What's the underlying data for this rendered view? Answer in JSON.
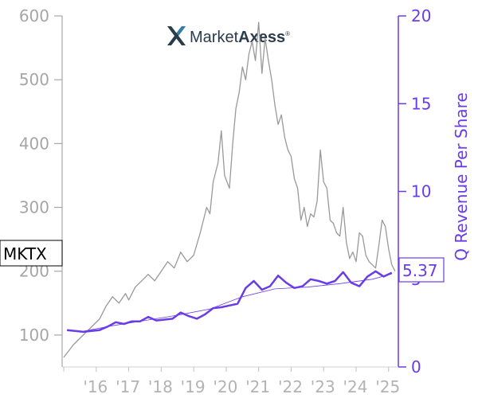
{
  "chart_data": {
    "type": "line",
    "ticker": "MKTX",
    "logo": {
      "text_regular": "Market",
      "text_bold": "Axess",
      "mark": "®"
    },
    "ylabel_right": "Q Revenue Per Share",
    "ylim_left": [
      50,
      600
    ],
    "ylim_right": [
      0,
      20
    ],
    "left_ticks": [
      100,
      200,
      300,
      400,
      500,
      600
    ],
    "right_ticks": [
      0,
      5,
      10,
      15,
      20
    ],
    "x_ticks": [
      "'16",
      "'17",
      "'18",
      "'19",
      "'20",
      "'21",
      "'22",
      "'23",
      "'24",
      "'25"
    ],
    "last_value_label": "5.37",
    "colors": {
      "price": "#999999",
      "revenue": "#6a3ce6",
      "axis_left": "#a6a6a6",
      "axis_right": "#6a3ce6",
      "trend": "#6a3ce6"
    },
    "series": [
      {
        "axis": "left",
        "x": [
          2015.0,
          2015.3,
          2015.6,
          2015.9,
          2016.1,
          2016.3,
          2016.5,
          2016.7,
          2016.9,
          2017.0,
          2017.2,
          2017.4,
          2017.6,
          2017.8,
          2018.0,
          2018.2,
          2018.4,
          2018.6,
          2018.8,
          2019.0,
          2019.2,
          2019.4,
          2019.5,
          2019.6,
          2019.75,
          2019.85,
          2019.95,
          2020.1,
          2020.2,
          2020.3,
          2020.4,
          2020.5,
          2020.6,
          2020.7,
          2020.8,
          2020.9,
          2021.0,
          2021.1,
          2021.2,
          2021.3,
          2021.4,
          2021.5,
          2021.6,
          2021.7,
          2021.8,
          2021.9,
          2022.0,
          2022.1,
          2022.2,
          2022.3,
          2022.4,
          2022.5,
          2022.6,
          2022.7,
          2022.8,
          2022.9,
          2023.0,
          2023.1,
          2023.2,
          2023.3,
          2023.4,
          2023.5,
          2023.6,
          2023.7,
          2023.8,
          2023.9,
          2024.0,
          2024.1,
          2024.2,
          2024.3,
          2024.4,
          2024.5,
          2024.6,
          2024.7,
          2024.8,
          2024.9,
          2025.0,
          2025.1,
          2025.2
        ],
        "values": [
          65,
          85,
          100,
          115,
          125,
          145,
          160,
          150,
          165,
          155,
          175,
          185,
          195,
          185,
          200,
          215,
          205,
          230,
          215,
          225,
          260,
          300,
          290,
          340,
          370,
          420,
          350,
          330,
          400,
          455,
          480,
          520,
          500,
          540,
          560,
          530,
          590,
          510,
          565,
          530,
          500,
          460,
          430,
          445,
          410,
          390,
          380,
          345,
          330,
          280,
          300,
          270,
          290,
          285,
          310,
          390,
          340,
          330,
          280,
          275,
          260,
          255,
          300,
          245,
          220,
          230,
          215,
          260,
          255,
          225,
          215,
          210,
          205,
          240,
          280,
          270,
          235,
          210,
          200
        ]
      },
      {
        "name": "Q Revenue Per Share",
        "axis": "right",
        "x": [
          2015.1,
          2015.35,
          2015.6,
          2015.85,
          2016.1,
          2016.35,
          2016.6,
          2016.85,
          2017.1,
          2017.35,
          2017.6,
          2017.85,
          2018.1,
          2018.35,
          2018.6,
          2018.85,
          2019.1,
          2019.35,
          2019.6,
          2019.85,
          2020.1,
          2020.35,
          2020.6,
          2020.85,
          2021.1,
          2021.35,
          2021.6,
          2021.85,
          2022.1,
          2022.35,
          2022.6,
          2022.85,
          2023.1,
          2023.35,
          2023.6,
          2023.85,
          2024.1,
          2024.35,
          2024.6,
          2024.85,
          2025.1
        ],
        "values": [
          2.1,
          2.05,
          2.0,
          2.05,
          2.1,
          2.3,
          2.55,
          2.45,
          2.6,
          2.6,
          2.85,
          2.65,
          2.7,
          2.75,
          3.1,
          2.9,
          2.75,
          3.0,
          3.35,
          3.4,
          3.5,
          3.6,
          4.5,
          4.9,
          4.4,
          4.6,
          5.2,
          4.8,
          4.5,
          4.6,
          5.0,
          4.9,
          4.75,
          4.9,
          5.4,
          4.8,
          4.6,
          5.15,
          5.45,
          5.15,
          5.37
        ]
      },
      {
        "axis": "right",
        "style": "trend",
        "x": [
          2015.5,
          2016.5,
          2017.5,
          2018.5,
          2019.5,
          2020.5,
          2021.5,
          2022.5,
          2023.5,
          2024.5,
          2025.1
        ],
        "values": [
          2.0,
          2.35,
          2.65,
          2.95,
          3.3,
          4.0,
          4.45,
          4.55,
          4.75,
          5.0,
          5.3
        ]
      }
    ]
  }
}
